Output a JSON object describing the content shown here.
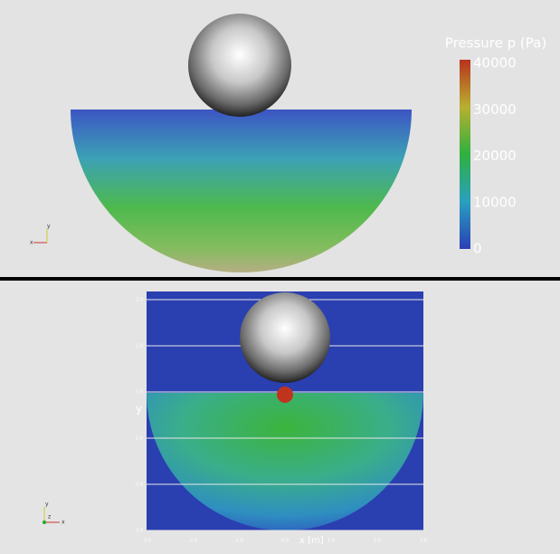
{
  "top_view": {
    "colorbar": {
      "title": "Pressure p  (Pa)",
      "lim": [
        0,
        40000
      ],
      "ticks": [
        40000,
        30000,
        20000,
        10000,
        0
      ]
    },
    "triad": {
      "y": "y",
      "x": "x"
    }
  },
  "bottom_view": {
    "y_label": "y",
    "x_label": "x [m]",
    "ylim": [
      -3,
      2
    ],
    "xlim": [
      -3,
      3
    ],
    "yticks": [
      {
        "value": 2,
        "label": "2.0"
      },
      {
        "value": 1,
        "label": "1.0"
      },
      {
        "value": 0,
        "label": "0.0"
      },
      {
        "value": -1,
        "label": "-1.0"
      },
      {
        "value": -2,
        "label": "-2.0"
      },
      {
        "value": -3,
        "label": "-3.0"
      }
    ],
    "xticks": [
      {
        "value": -3,
        "label": "-3.0"
      },
      {
        "value": -2,
        "label": "-2.0"
      },
      {
        "value": -1,
        "label": "-1.0"
      },
      {
        "value": 0,
        "label": "0.0"
      },
      {
        "value": 1,
        "label": "1.0"
      },
      {
        "value": 2,
        "label": "2.0"
      },
      {
        "value": 3,
        "label": "3.0"
      }
    ],
    "triad": {
      "y": "y",
      "z": "z",
      "x": "x"
    }
  }
}
